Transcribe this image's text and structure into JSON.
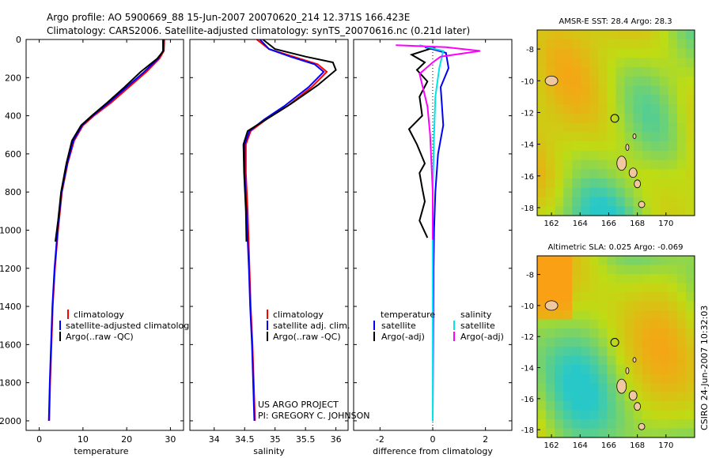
{
  "header": {
    "line1": "Argo profile: AO 5900669_88 15-Jun-2007 20070620_214 12.371S 166.423E",
    "line2": "Climatology: CARS2006. Satellite-adjusted climatology: synTS_20070616.nc (0.21d later)"
  },
  "colors": {
    "climatology": "#ff0000",
    "satellite": "#0000ff",
    "argo": "#000000",
    "sal_satellite": "#00e5e5",
    "sal_argo": "#ff00ff"
  },
  "chart_data": [
    {
      "type": "line",
      "id": "temperature",
      "xlabel": "temperature",
      "ylabel": "",
      "xlim": [
        -3,
        33
      ],
      "ylim": [
        2050,
        0
      ],
      "xticks": [
        0,
        10,
        20,
        30
      ],
      "yticks": [
        0,
        200,
        400,
        600,
        800,
        1000,
        1200,
        1400,
        1600,
        1800,
        2000
      ],
      "legend": [
        "climatology",
        "satellite-adjusted climatolog",
        "Argo(..raw -QC)"
      ],
      "series": [
        {
          "name": "climatology",
          "color": "#ff0000",
          "x": [
            28.6,
            28.5,
            27.5,
            24.5,
            20.5,
            16.5,
            12.5,
            10.0,
            8.0,
            6.5,
            5.2,
            4.3,
            3.6,
            3.1,
            2.8,
            2.5,
            2.3
          ],
          "y": [
            0,
            60,
            100,
            170,
            250,
            330,
            400,
            450,
            530,
            650,
            800,
            1000,
            1200,
            1400,
            1600,
            1800,
            2000
          ]
        },
        {
          "name": "satellite-adjusted climatology",
          "color": "#0000ff",
          "x": [
            28.3,
            28.3,
            27.2,
            24.0,
            20.0,
            16.0,
            12.2,
            9.8,
            7.8,
            6.4,
            5.1,
            4.2,
            3.5,
            3.0,
            2.7,
            2.4,
            2.2
          ],
          "y": [
            0,
            60,
            100,
            170,
            250,
            330,
            400,
            450,
            530,
            650,
            800,
            1000,
            1200,
            1400,
            1600,
            1800,
            2000
          ]
        },
        {
          "name": "Argo(..raw -QC)",
          "color": "#000000",
          "x": [
            28.4,
            28.4,
            27.0,
            23.2,
            19.5,
            15.6,
            12.0,
            9.6,
            7.5,
            6.2,
            5.0,
            4.3,
            3.7
          ],
          "y": [
            0,
            60,
            100,
            170,
            250,
            330,
            400,
            450,
            530,
            650,
            800,
            950,
            1060
          ]
        }
      ]
    },
    {
      "type": "line",
      "id": "salinity",
      "xlabel": "salinity",
      "xlim": [
        33.6,
        36.2
      ],
      "ylim": [
        2050,
        0
      ],
      "xticks": [
        34,
        34.5,
        35,
        35.5,
        36
      ],
      "legend": [
        "climatology",
        "satellite adj. clim.",
        "Argo(..raw -QC)"
      ],
      "series": [
        {
          "name": "climatology",
          "color": "#ff0000",
          "x": [
            34.7,
            34.9,
            35.3,
            35.7,
            35.85,
            35.6,
            35.2,
            34.85,
            34.6,
            34.52,
            34.52,
            34.55,
            34.58,
            34.6,
            34.63,
            34.65,
            34.67
          ],
          "y": [
            0,
            50,
            90,
            130,
            170,
            250,
            350,
            420,
            480,
            550,
            700,
            900,
            1200,
            1400,
            1600,
            1800,
            2000
          ]
        },
        {
          "name": "satellite adj. clim.",
          "color": "#0000ff",
          "x": [
            34.75,
            34.9,
            35.25,
            35.65,
            35.8,
            35.55,
            35.15,
            34.82,
            34.58,
            34.5,
            34.5,
            34.53,
            34.57,
            34.59,
            34.62,
            34.64,
            34.66
          ],
          "y": [
            0,
            50,
            90,
            130,
            170,
            250,
            350,
            420,
            480,
            550,
            700,
            900,
            1200,
            1400,
            1600,
            1800,
            2000
          ]
        },
        {
          "name": "Argo(..raw -QC)",
          "color": "#000000",
          "x": [
            34.8,
            35.0,
            35.5,
            35.95,
            36.0,
            35.7,
            35.25,
            34.85,
            34.55,
            34.48,
            34.49,
            34.52,
            34.53
          ],
          "y": [
            0,
            50,
            90,
            120,
            160,
            240,
            340,
            420,
            480,
            550,
            700,
            900,
            1060
          ]
        }
      ]
    },
    {
      "type": "line",
      "id": "difference",
      "xlabel": "difference from climatology",
      "xlim": [
        -3,
        3
      ],
      "ylim": [
        2050,
        0
      ],
      "xticks": [
        -2,
        0,
        2
      ],
      "legend_temperature_title": "temperature",
      "legend_salinity_title": "salinity",
      "legend": [
        "satellite",
        "Argo(-adj)",
        "satellite",
        "Argo(-adj)"
      ],
      "series": [
        {
          "name": "temperature satellite",
          "color": "#0000ff",
          "x": [
            -0.3,
            0.5,
            0.6,
            0.3,
            0.35,
            0.4,
            0.2,
            0.1,
            0.05,
            0.03,
            0.0
          ],
          "y": [
            40,
            70,
            150,
            250,
            350,
            450,
            600,
            800,
            1000,
            1200,
            2000
          ]
        },
        {
          "name": "temperature Argo(-adj)",
          "color": "#000000",
          "x": [
            0.1,
            -0.8,
            -0.3,
            -0.6,
            -0.2,
            -0.5,
            -0.4,
            -0.9,
            -0.6,
            -0.3,
            -0.5,
            -0.4,
            -0.3,
            -0.5,
            -0.2
          ],
          "y": [
            40,
            80,
            120,
            160,
            220,
            300,
            400,
            470,
            550,
            650,
            700,
            780,
            850,
            950,
            1040
          ]
        },
        {
          "name": "salinity satellite",
          "color": "#00e5e5",
          "x": [
            -0.5,
            0.4,
            0.25,
            0.1,
            0.05,
            0.0,
            0.0,
            0.0
          ],
          "y": [
            30,
            60,
            150,
            300,
            500,
            800,
            1200,
            2000
          ]
        },
        {
          "name": "salinity Argo(-adj)",
          "color": "#ff00ff",
          "x": [
            -1.4,
            0.5,
            1.8,
            0.3,
            0.0,
            -0.5,
            -0.2,
            -0.1,
            0.0,
            0.0
          ],
          "y": [
            30,
            40,
            60,
            90,
            120,
            180,
            350,
            500,
            800,
            1050
          ]
        }
      ]
    },
    {
      "type": "heatmap",
      "id": "sst-map",
      "title": "AMSR-E SST: 28.4 Argo: 28.3",
      "xticks": [
        162,
        164,
        166,
        168,
        170
      ],
      "yticks": [
        -8,
        -10,
        -12,
        -14,
        -16,
        -18
      ],
      "xlim": [
        161,
        172
      ],
      "ylim": [
        -18.5,
        -6.8
      ],
      "marker": {
        "lon": 166.423,
        "lat": -12.371
      }
    },
    {
      "type": "heatmap",
      "id": "sla-map",
      "title": "Altimetric SLA: 0.025 Argo: -0.069",
      "xticks": [
        162,
        164,
        166,
        168,
        170
      ],
      "yticks": [
        -8,
        -10,
        -12,
        -14,
        -16,
        -18
      ],
      "xlim": [
        161,
        172
      ],
      "ylim": [
        -18.5,
        -6.8
      ],
      "marker": {
        "lon": 166.423,
        "lat": -12.371
      }
    }
  ],
  "annotations": {
    "project": "US ARGO PROJECT",
    "pi": "PI: GREGORY C. JOHNSON",
    "stamp": "CSIRO 24-Jun-2007 10:32:03"
  }
}
